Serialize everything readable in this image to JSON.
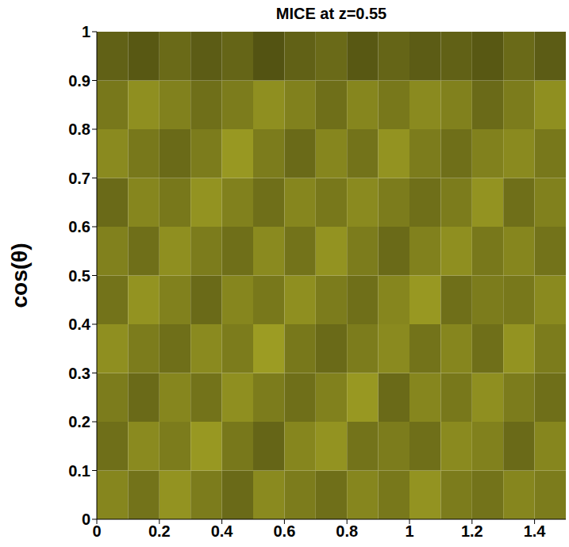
{
  "chart_data": {
    "type": "heatmap",
    "title": "MICE at z=0.55",
    "y_label": "cos(θ)",
    "xlim": [
      0,
      1.5
    ],
    "xticks": [
      0,
      0.2,
      0.4,
      0.6,
      0.8,
      1,
      1.2,
      1.4
    ],
    "ylim": [
      0,
      1
    ],
    "yticks": [
      0,
      0.1,
      0.2,
      0.3,
      0.4,
      0.5,
      0.6,
      0.7,
      0.8,
      0.9,
      1
    ],
    "grid": false,
    "color": "#e6e634",
    "cells": [
      [
        0.52,
        0.48,
        0.55,
        0.5,
        0.46,
        0.53,
        0.5,
        0.47,
        0.52,
        0.49,
        0.55,
        0.5,
        0.48,
        0.52,
        0.5
      ],
      [
        0.47,
        0.53,
        0.5,
        0.56,
        0.49,
        0.45,
        0.52,
        0.55,
        0.48,
        0.5,
        0.47,
        0.53,
        0.51,
        0.46,
        0.52
      ],
      [
        0.5,
        0.46,
        0.52,
        0.48,
        0.54,
        0.5,
        0.47,
        0.51,
        0.56,
        0.46,
        0.52,
        0.49,
        0.54,
        0.5,
        0.47
      ],
      [
        0.54,
        0.5,
        0.47,
        0.53,
        0.5,
        0.57,
        0.49,
        0.46,
        0.5,
        0.53,
        0.48,
        0.52,
        0.47,
        0.55,
        0.5
      ],
      [
        0.48,
        0.55,
        0.51,
        0.46,
        0.52,
        0.49,
        0.54,
        0.5,
        0.47,
        0.52,
        0.56,
        0.47,
        0.5,
        0.49,
        0.53
      ],
      [
        0.51,
        0.47,
        0.54,
        0.5,
        0.47,
        0.53,
        0.48,
        0.55,
        0.5,
        0.46,
        0.51,
        0.54,
        0.49,
        0.52,
        0.48
      ],
      [
        0.46,
        0.52,
        0.49,
        0.55,
        0.51,
        0.47,
        0.52,
        0.49,
        0.53,
        0.5,
        0.47,
        0.5,
        0.55,
        0.47,
        0.51
      ],
      [
        0.53,
        0.49,
        0.46,
        0.5,
        0.56,
        0.5,
        0.46,
        0.52,
        0.48,
        0.55,
        0.5,
        0.47,
        0.51,
        0.53,
        0.49
      ],
      [
        0.49,
        0.54,
        0.51,
        0.47,
        0.5,
        0.54,
        0.51,
        0.47,
        0.52,
        0.49,
        0.53,
        0.51,
        0.46,
        0.5,
        0.54
      ],
      [
        0.44,
        0.42,
        0.46,
        0.43,
        0.45,
        0.41,
        0.44,
        0.46,
        0.42,
        0.45,
        0.43,
        0.44,
        0.42,
        0.46,
        0.43
      ]
    ]
  }
}
